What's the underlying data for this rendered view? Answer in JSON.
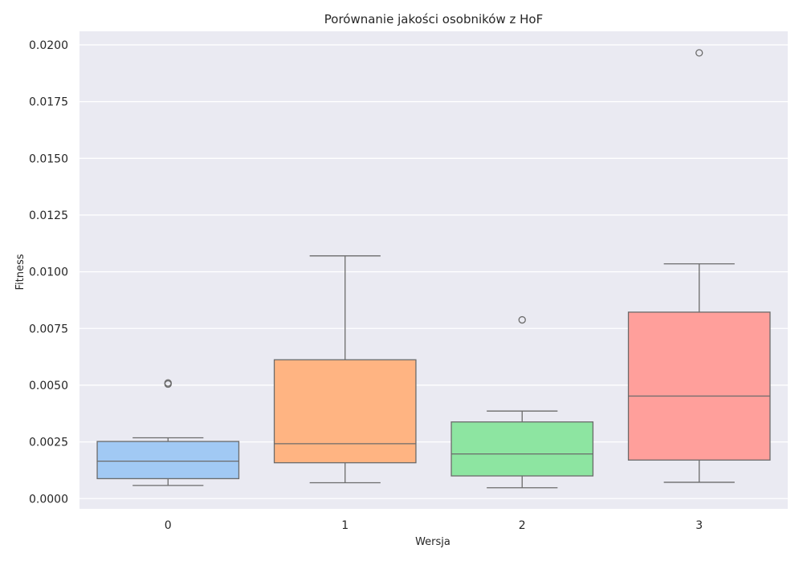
{
  "chart_data": {
    "type": "box",
    "title": "Porównanie jakości osobników z HoF",
    "xlabel": "Wersja",
    "ylabel": "Fitness",
    "ylim": [
      -0.00045,
      0.0206
    ],
    "yticks": [
      0.0,
      0.0025,
      0.005,
      0.0075,
      0.01,
      0.0125,
      0.015,
      0.0175,
      0.02
    ],
    "ytick_labels": [
      "0.0000",
      "0.0025",
      "0.0050",
      "0.0075",
      "0.0100",
      "0.0125",
      "0.0150",
      "0.0175",
      "0.0200"
    ],
    "categories": [
      "0",
      "1",
      "2",
      "3"
    ],
    "grid": true,
    "background": "#eaeaf2",
    "box_edge_color": "#6b6b6b",
    "boxes": [
      {
        "category": "0",
        "whisker_low": 0.00058,
        "q1": 0.00088,
        "median": 0.00165,
        "q3": 0.00252,
        "whisker_high": 0.00268,
        "outliers": [
          0.00505,
          0.0051
        ],
        "color": "#a1c9f4"
      },
      {
        "category": "1",
        "whisker_low": 0.0007,
        "q1": 0.00158,
        "median": 0.00242,
        "q3": 0.00612,
        "whisker_high": 0.0107,
        "outliers": [],
        "color": "#ffb482"
      },
      {
        "category": "2",
        "whisker_low": 0.00048,
        "q1": 0.001,
        "median": 0.00197,
        "q3": 0.00338,
        "whisker_high": 0.00386,
        "outliers": [
          0.00788
        ],
        "color": "#8de5a1"
      },
      {
        "category": "3",
        "whisker_low": 0.00072,
        "q1": 0.0017,
        "median": 0.00452,
        "q3": 0.00822,
        "whisker_high": 0.01035,
        "outliers": [
          0.01965
        ],
        "color": "#ff9f9b"
      }
    ]
  }
}
